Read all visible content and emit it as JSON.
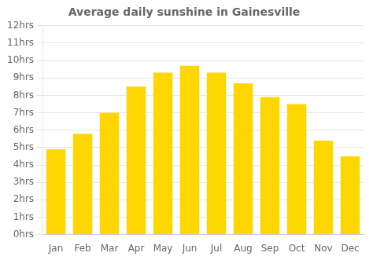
{
  "chart_data": {
    "type": "bar",
    "title": "Average daily sunshine in Gainesville",
    "categories": [
      "Jan",
      "Feb",
      "Mar",
      "Apr",
      "May",
      "Jun",
      "Jul",
      "Aug",
      "Sep",
      "Oct",
      "Nov",
      "Dec"
    ],
    "values": [
      4.9,
      5.8,
      7.0,
      8.5,
      9.3,
      9.7,
      9.3,
      8.7,
      7.9,
      7.5,
      5.4,
      4.5
    ],
    "color": "#FFD700",
    "ylim": [
      0,
      12
    ],
    "yticks": [
      {
        "value": 0,
        "label": "0hrs"
      },
      {
        "value": 1,
        "label": "1hrs"
      },
      {
        "value": 2,
        "label": "2hrs"
      },
      {
        "value": 3,
        "label": "3hrs"
      },
      {
        "value": 4,
        "label": "4hrs"
      },
      {
        "value": 5,
        "label": "5hrs"
      },
      {
        "value": 6,
        "label": "6hrs"
      },
      {
        "value": 7,
        "label": "7hrs"
      },
      {
        "value": 8,
        "label": "8hrs"
      },
      {
        "value": 9,
        "label": "9hrs"
      },
      {
        "value": 10,
        "label": "10hrs"
      },
      {
        "value": 11,
        "label": "11hrs"
      },
      {
        "value": 12,
        "label": "12hrs"
      }
    ],
    "grid": true
  }
}
